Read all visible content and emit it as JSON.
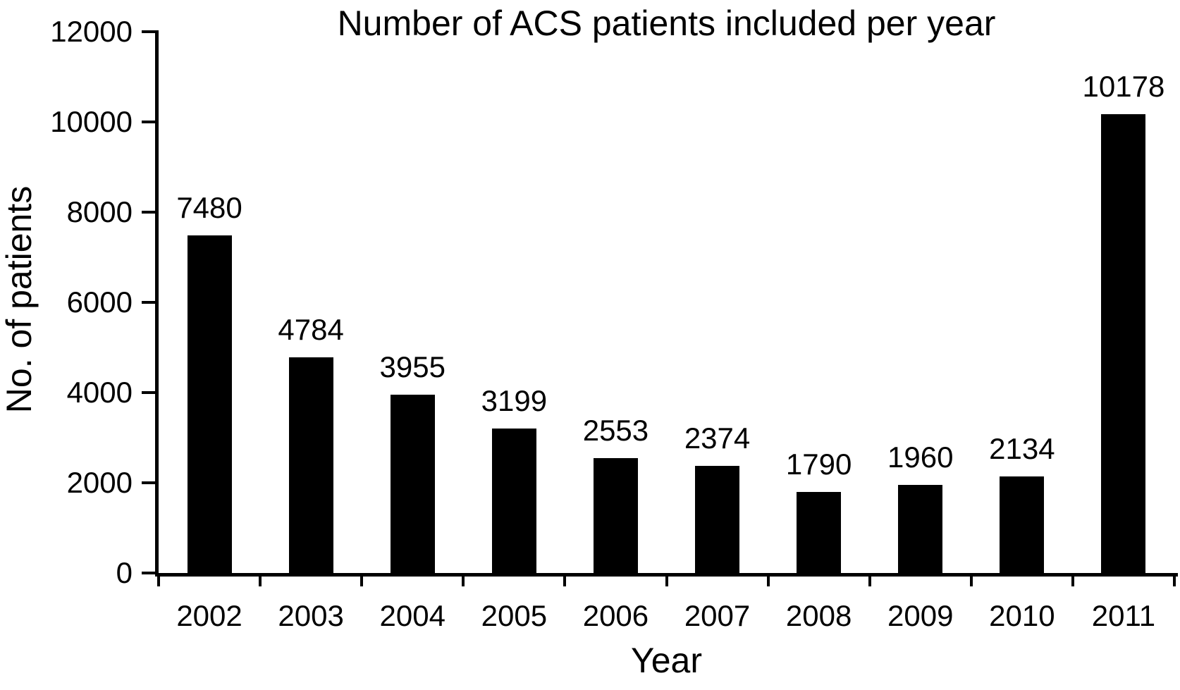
{
  "chart_data": {
    "type": "bar",
    "title": "Number of ACS patients included per year",
    "xlabel": "Year",
    "ylabel": "No. of patients",
    "categories": [
      "2002",
      "2003",
      "2004",
      "2005",
      "2006",
      "2007",
      "2008",
      "2009",
      "2010",
      "2011"
    ],
    "values": [
      7480,
      4784,
      3955,
      3199,
      2553,
      2374,
      1790,
      1960,
      2134,
      10178
    ],
    "data_labels": [
      "7480",
      "4784",
      "3955",
      "3199",
      "2553",
      "2374",
      "1790",
      "1960",
      "2134",
      "10178"
    ],
    "ylim": [
      0,
      12000
    ],
    "yticks": [
      0,
      2000,
      4000,
      6000,
      8000,
      10000,
      12000
    ],
    "ytick_labels": [
      "0",
      "2000",
      "4000",
      "6000",
      "8000",
      "10000",
      "12000"
    ],
    "grid": "off",
    "legend": "none",
    "bar_color": "#000000",
    "background_color": "#ffffff",
    "text_color": "#000000"
  }
}
